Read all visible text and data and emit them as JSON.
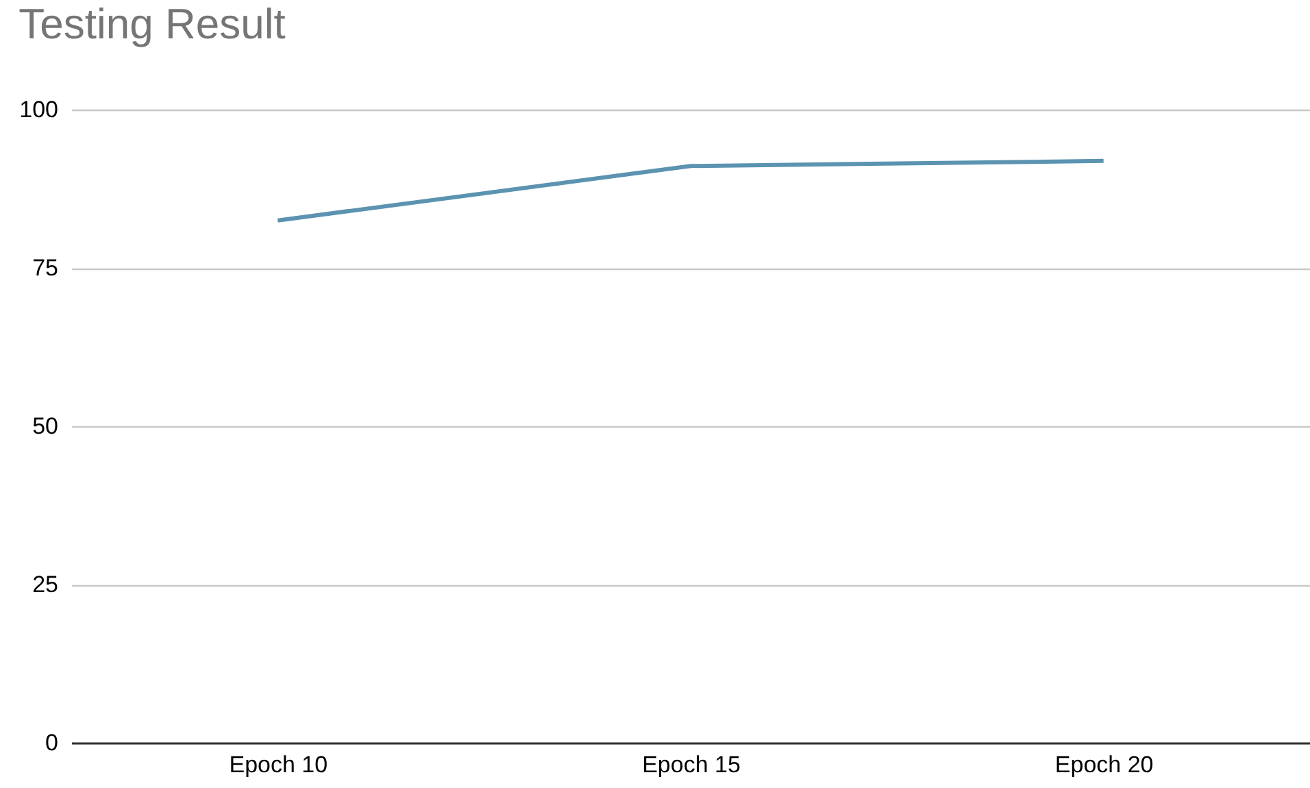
{
  "chart_data": {
    "type": "line",
    "title": "Testing Result",
    "categories": [
      "Epoch 10",
      "Epoch 15",
      "Epoch 20"
    ],
    "series": [
      {
        "color": "#5b93b0",
        "values": [
          82.5,
          91.1,
          91.9
        ]
      }
    ],
    "ylim": [
      0,
      100
    ],
    "yticks": [
      0,
      25,
      50,
      75,
      100
    ],
    "grid": "y",
    "marker": "none",
    "line_style": "solid"
  }
}
